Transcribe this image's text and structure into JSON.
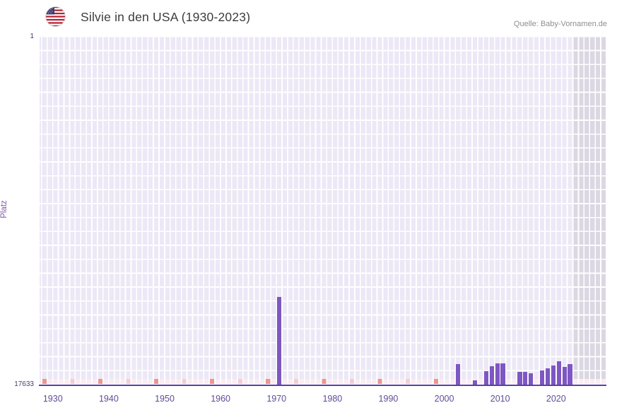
{
  "header": {
    "title": "Silvie in den USA (1930-2023)",
    "source": "Quelle: Baby-Vornamen.de"
  },
  "chart": {
    "y_label": "Platz",
    "y_top_tick": "1",
    "y_bottom_tick": "17633"
  },
  "icons": {
    "flag": "us-flag-icon"
  },
  "chart_data": {
    "type": "bar",
    "title": "Silvie in den USA (1930-2023)",
    "xlabel": "",
    "ylabel": "Platz",
    "y_axis_inverted": true,
    "y_domain_rank": [
      1,
      17633
    ],
    "x_domain": [
      1927.5,
      2029
    ],
    "x_ticks": [
      1930,
      1940,
      1950,
      1960,
      1970,
      1980,
      1990,
      2000,
      2010,
      2020
    ],
    "grid": true,
    "legend": false,
    "points": [
      {
        "year": 1970,
        "rank": 13200
      },
      {
        "year": 2002,
        "rank": 16600
      },
      {
        "year": 2005,
        "rank": 17400
      },
      {
        "year": 2007,
        "rank": 16950
      },
      {
        "year": 2008,
        "rank": 16700
      },
      {
        "year": 2009,
        "rank": 16550
      },
      {
        "year": 2010,
        "rank": 16550
      },
      {
        "year": 2013,
        "rank": 17000
      },
      {
        "year": 2014,
        "rank": 17000
      },
      {
        "year": 2015,
        "rank": 17050
      },
      {
        "year": 2017,
        "rank": 16900
      },
      {
        "year": 2018,
        "rank": 16800
      },
      {
        "year": 2019,
        "rank": 16650
      },
      {
        "year": 2020,
        "rank": 16450
      },
      {
        "year": 2021,
        "rank": 16750
      },
      {
        "year": 2022,
        "rank": 16600
      }
    ],
    "no_rank_marker_years": {
      "strong": [
        1928,
        1938,
        1948,
        1958,
        1968,
        1978,
        1988,
        1998
      ],
      "faint": [
        1933,
        1943,
        1953,
        1963,
        1973,
        1983,
        1993
      ]
    },
    "future_region_start": 2023,
    "colors": {
      "bar": "#7e57c2",
      "plot_background": "#ece8f6",
      "future_region": "#dbd7e3",
      "baseline": "#5c3daa",
      "bottom_stripe": "#fbecef",
      "marker_strong": "#ef958e",
      "marker_faint": "#f6cdd1",
      "axis_text": "#5e4d96"
    }
  }
}
